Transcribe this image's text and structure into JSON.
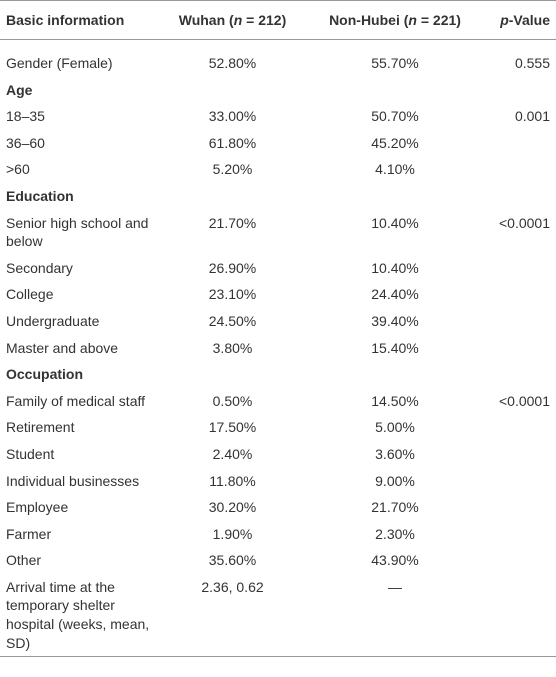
{
  "table": {
    "header": [
      [
        {
          "text": "Basic information"
        }
      ],
      [
        {
          "text": "Wuhan ("
        },
        {
          "text": "n",
          "italic": true
        },
        {
          "text": " = 212)"
        }
      ],
      [
        {
          "text": "Non-Hubei ("
        },
        {
          "text": "n",
          "italic": true
        },
        {
          "text": " = 221)"
        }
      ],
      [
        {
          "text": "p",
          "italic": true
        },
        {
          "text": "-Value"
        }
      ]
    ],
    "rows": [
      {
        "label": "Gender (Female)",
        "wuhan": "52.80%",
        "nonhubei": "55.70%",
        "p": "0.555"
      },
      {
        "section": "Age"
      },
      {
        "label": "18–35",
        "wuhan": "33.00%",
        "nonhubei": "50.70%",
        "p": "0.001"
      },
      {
        "label": "36–60",
        "wuhan": "61.80%",
        "nonhubei": "45.20%"
      },
      {
        "label": ">60",
        "wuhan": "5.20%",
        "nonhubei": "4.10%"
      },
      {
        "section": "Education"
      },
      {
        "label": "Senior high school and below",
        "wuhan": "21.70%",
        "nonhubei": "10.40%",
        "p": "<0.0001"
      },
      {
        "label": "Secondary",
        "wuhan": "26.90%",
        "nonhubei": "10.40%"
      },
      {
        "label": "College",
        "wuhan": "23.10%",
        "nonhubei": "24.40%"
      },
      {
        "label": "Undergraduate",
        "wuhan": "24.50%",
        "nonhubei": "39.40%"
      },
      {
        "label": "Master and above",
        "wuhan": "3.80%",
        "nonhubei": "15.40%"
      },
      {
        "section": "Occupation"
      },
      {
        "label": "Family of medical staff",
        "wuhan": "0.50%",
        "nonhubei": "14.50%",
        "p": "<0.0001"
      },
      {
        "label": "Retirement",
        "wuhan": "17.50%",
        "nonhubei": "5.00%"
      },
      {
        "label": "Student",
        "wuhan": "2.40%",
        "nonhubei": "3.60%"
      },
      {
        "label": "Individual businesses",
        "wuhan": "11.80%",
        "nonhubei": "9.00%"
      },
      {
        "label": "Employee",
        "wuhan": "30.20%",
        "nonhubei": "21.70%"
      },
      {
        "label": "Farmer",
        "wuhan": "1.90%",
        "nonhubei": "2.30%"
      },
      {
        "label": "Other",
        "wuhan": "35.60%",
        "nonhubei": "43.90%"
      },
      {
        "label": "Arrival time at the temporary shelter hospital (weeks, mean, SD)",
        "wuhan": "2.36, 0.62",
        "nonhubei": "—"
      }
    ]
  }
}
